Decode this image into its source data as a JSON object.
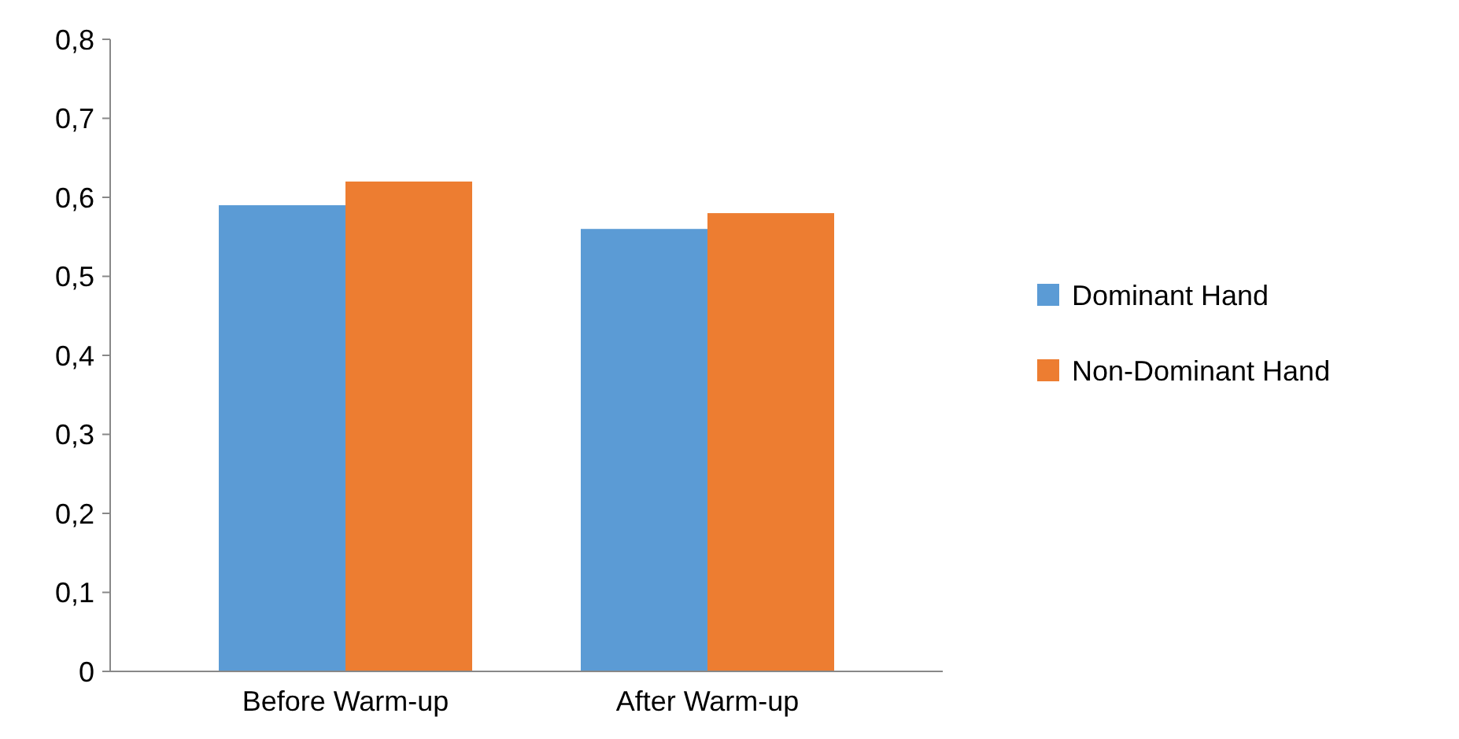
{
  "chart_data": {
    "type": "bar",
    "categories": [
      "Before Warm-up",
      "After Warm-up"
    ],
    "series": [
      {
        "name": "Dominant Hand",
        "color": "#5b9bd5",
        "values": [
          0.59,
          0.56
        ]
      },
      {
        "name": "Non-Dominant Hand",
        "color": "#ed7d31",
        "values": [
          0.62,
          0.58
        ]
      }
    ],
    "ylim": [
      0,
      0.8
    ],
    "yticks": [
      0,
      {
        "value": 0.1,
        "label": "0,1"
      },
      {
        "value": 0.2,
        "label": "0,2"
      },
      {
        "value": 0.3,
        "label": "0,3"
      },
      {
        "value": 0.4,
        "label": "0,4"
      },
      {
        "value": 0.5,
        "label": "0,5"
      },
      {
        "value": 0.6,
        "label": "0,6"
      },
      {
        "value": 0.7,
        "label": "0,7"
      },
      {
        "value": 0.8,
        "label": "0,8"
      }
    ],
    "grid": false,
    "legend": "right"
  }
}
